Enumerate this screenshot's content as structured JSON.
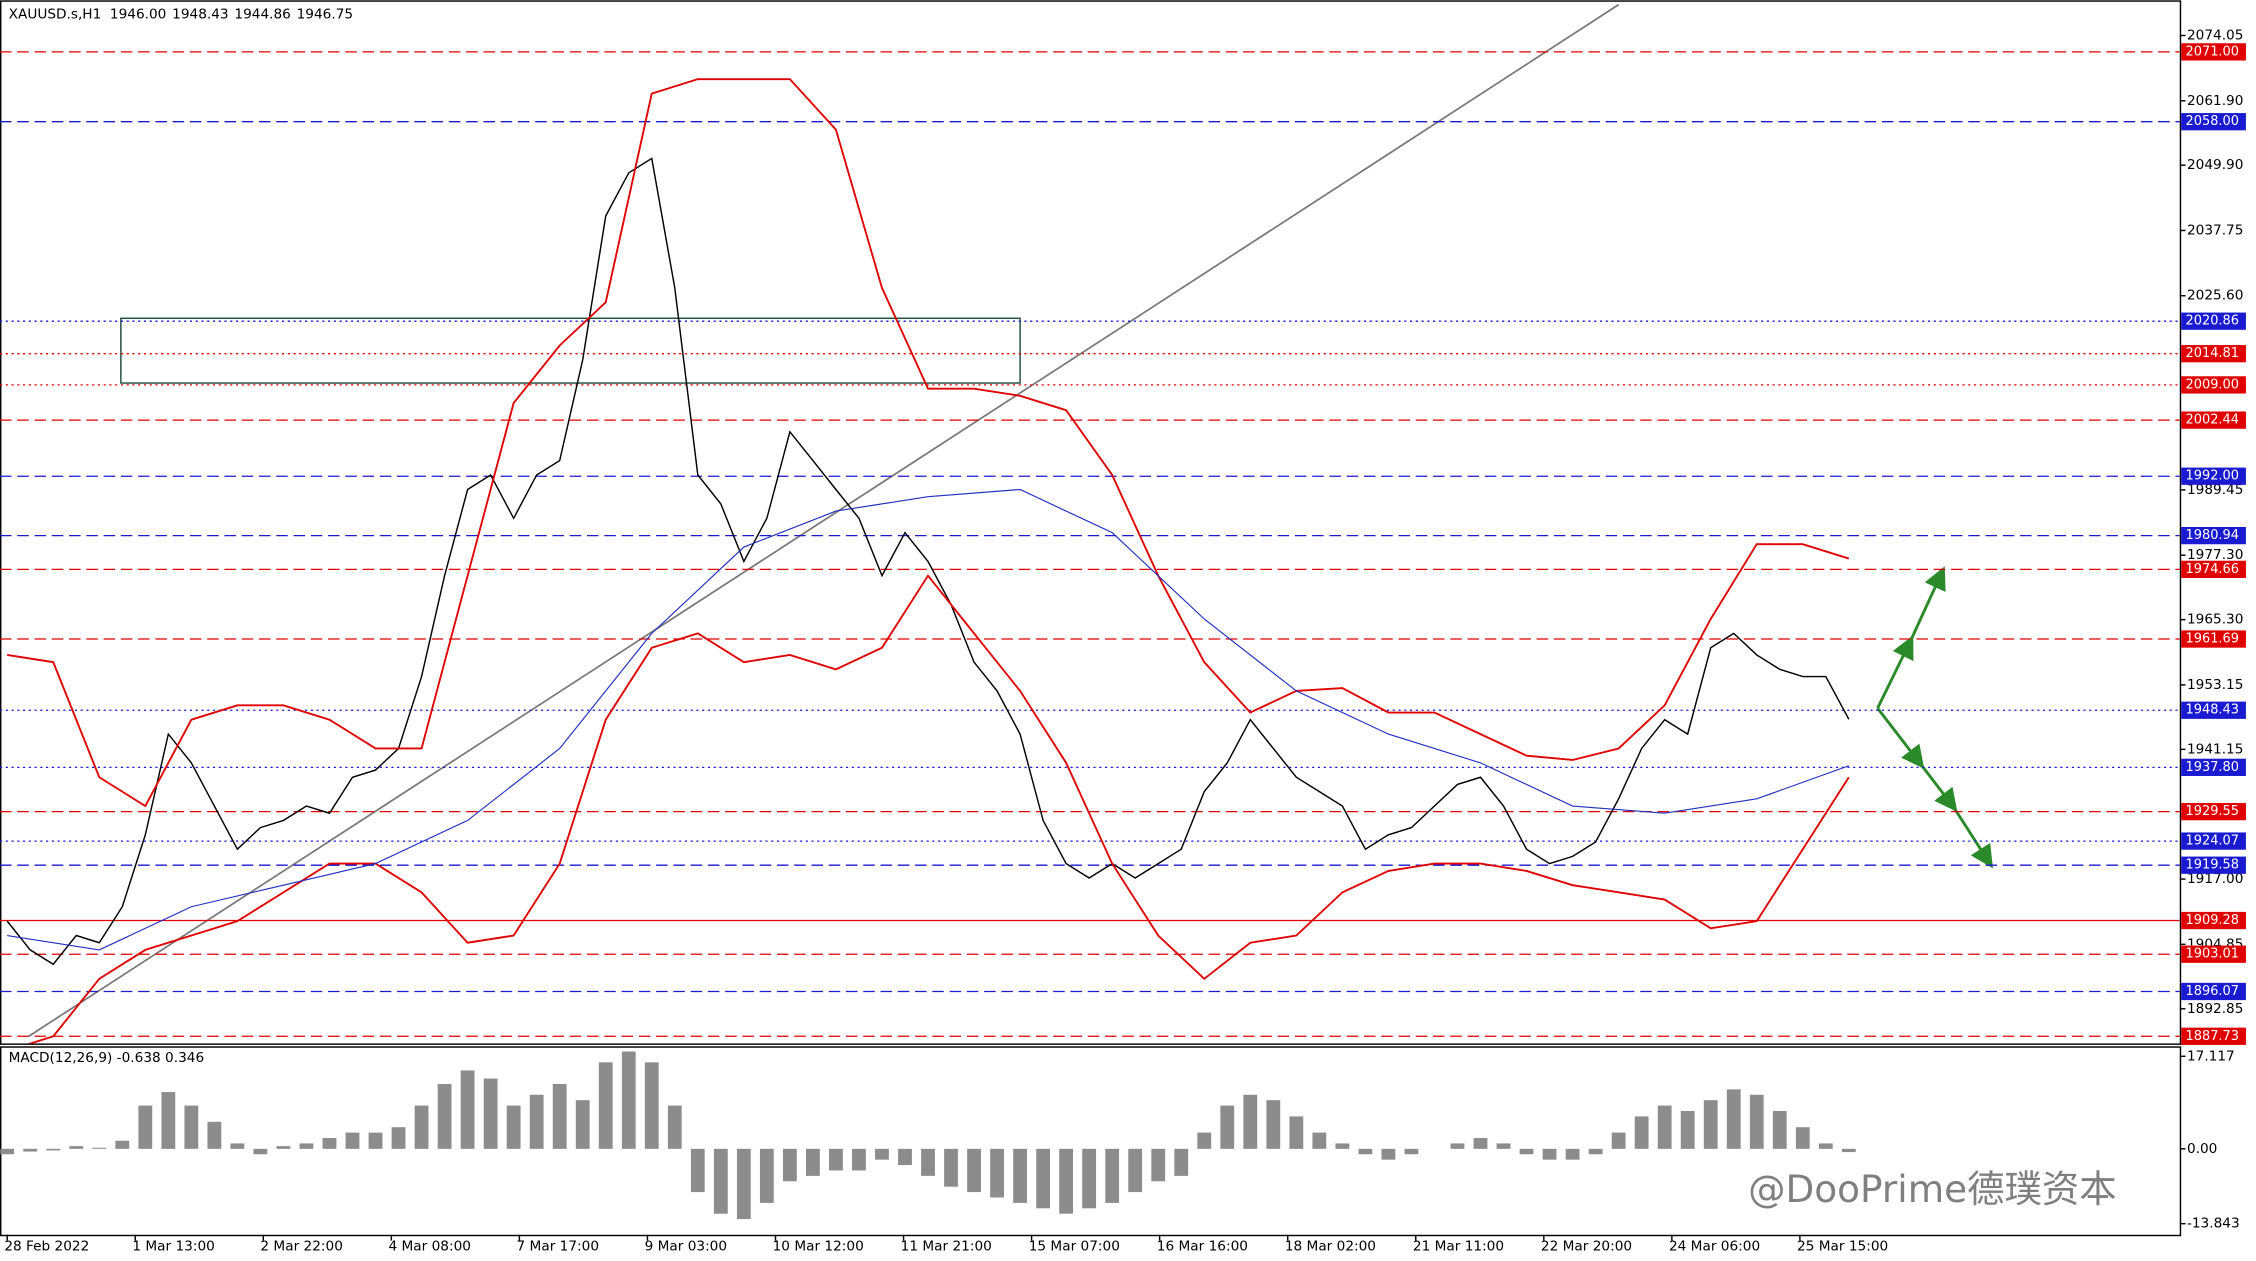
{
  "header": {
    "symbol": "XAUUSD.s,H1",
    "ohlc": [
      "1946.00",
      "1948.43",
      "1944.86",
      "1946.75"
    ]
  },
  "watermark": "@DooPrime德璞资本",
  "chart_data": [
    {
      "type": "line",
      "ylim": [
        1886.4,
        2080.6
      ],
      "yticks": [
        2074.05,
        {
          "value": 2061.9,
          "label": "2061.90"
        },
        {
          "value": 2049.9,
          "label": "2049.90"
        },
        2037.75,
        {
          "value": 2025.6,
          "label": "2025.60"
        },
        1989.45,
        {
          "value": 1977.3,
          "label": "1977.30"
        },
        {
          "value": 1965.3,
          "label": "1965.30"
        },
        1953.15,
        1941.15,
        {
          "value": 1917,
          "label": "1917.00"
        },
        1904.85,
        1892.85
      ],
      "levels": [
        {
          "value": 2071,
          "label": "2071.00",
          "color": "#e00000",
          "style": "dashed"
        },
        {
          "value": 2058,
          "label": "2058.00",
          "color": "#1a1ad0",
          "style": "dashed"
        },
        {
          "value": 2020.86,
          "label": "2020.86",
          "color": "#1a1ad0",
          "style": "dotted"
        },
        {
          "value": 2014.81,
          "label": "2014.81",
          "color": "#e00000",
          "style": "dotted"
        },
        {
          "value": 2009,
          "label": "2009.00",
          "color": "#e00000",
          "style": "dotted"
        },
        {
          "value": 2002.44,
          "label": "2002.44",
          "color": "#e00000",
          "style": "dashed"
        },
        {
          "value": 1992,
          "label": "1992.00",
          "color": "#1a1ad0",
          "style": "dashed"
        },
        {
          "value": 1980.94,
          "label": "1980.94",
          "color": "#1a1ad0",
          "style": "dashed"
        },
        {
          "value": 1974.66,
          "label": "1974.66",
          "color": "#e00000",
          "style": "dashed"
        },
        {
          "value": 1961.69,
          "label": "1961.69",
          "color": "#e00000",
          "style": "dashed"
        },
        {
          "value": 1948.43,
          "label": "1948.43",
          "color": "#1a1ad0",
          "style": "dotted"
        },
        {
          "value": 1937.8,
          "label": "1937.80",
          "color": "#1a1ad0",
          "style": "dotted"
        },
        {
          "value": 1929.55,
          "label": "1929.55",
          "color": "#e00000",
          "style": "dashed"
        },
        {
          "value": 1924.07,
          "label": "1924.07",
          "color": "#1a1ad0",
          "style": "dotted"
        },
        {
          "value": 1919.58,
          "label": "1919.58",
          "color": "#1a1ad0",
          "style": "dashed"
        },
        {
          "value": 1909.28,
          "label": "1909.28",
          "color": "#e00000",
          "style": "solid"
        },
        {
          "value": 1903.01,
          "label": "1903.01",
          "color": "#e00000",
          "style": "dashed"
        },
        {
          "value": 1896.07,
          "label": "1896.07",
          "color": "#1a1ad0",
          "style": "dashed"
        },
        {
          "value": 1887.73,
          "label": "1887.73",
          "color": "#e00000",
          "style": "dashed"
        }
      ],
      "xlabels": [
        "28 Feb 2022",
        "1 Mar 13:00",
        "2 Mar 22:00",
        "4 Mar 08:00",
        "7 Mar 17:00",
        "9 Mar 03:00",
        "10 Mar 12:00",
        "11 Mar 21:00",
        "15 Mar 07:00",
        "16 Mar 16:00",
        "18 Mar 02:00",
        "21 Mar 11:00",
        "22 Mar 20:00",
        "24 Mar 06:00",
        "25 Mar 15:00"
      ],
      "series": [
        {
          "color": "#000000",
          "values": [
            1909.16,
            1903.8,
            1901.12,
            1906.48,
            1905.14,
            1911.84,
            1925.23,
            1943.99,
            1938.63,
            1930.59,
            1922.56,
            1926.57,
            1927.91,
            1930.59,
            1929.25,
            1935.95,
            1937.29,
            1941.31,
            1954.71,
            1973.47,
            1989.54,
            1992.22,
            1984.18,
            1992.22,
            1994.9,
            2013.66,
            2040.45,
            2048.49,
            2051.17,
            2027.06,
            1992.22,
            1986.86,
            1976.14,
            1984.18,
            2000.26,
            1994.9,
            1989.54,
            1984.18,
            1973.47,
            1981.5,
            1976.14,
            1968.11,
            1957.39,
            1952.03,
            1943.99,
            1927.91,
            1919.87,
            1917.2,
            1919.87,
            1917.2,
            1919.87,
            1922.56,
            1933.27,
            1938.63,
            1946.67,
            1941.31,
            1935.95,
            1933.27,
            1930.59,
            1922.56,
            1925.23,
            1926.57,
            1930.59,
            1934.61,
            1935.95,
            1930.59,
            1922.56,
            1919.87,
            1921.21,
            1923.89,
            1931.93,
            1941.31,
            1946.67,
            1943.99,
            1960.07,
            1962.75,
            1958.73,
            1956.05,
            1954.71,
            1954.71,
            1946.75
          ]
        },
        {
          "color": "#e00000",
          "values": [
            1958.73,
            1957.39,
            1935.95,
            1930.59,
            1946.67,
            1949.35,
            1949.35,
            1946.67,
            1941.31,
            1941.31,
            1973.47,
            2005.62,
            2016.34,
            2024.38,
            2063.23,
            2065.91,
            2065.91,
            2065.91,
            2056.53,
            2027.06,
            2008.3,
            2008.3,
            2006.96,
            2004.28,
            1992.22,
            1973.47,
            1957.39,
            1948.01,
            1952.03,
            1952.57,
            1948.01,
            1948.01,
            1943.99,
            1939.97,
            1939.17,
            1941.31,
            1949.35,
            1965.43,
            1979.36,
            1979.36,
            1976.68
          ]
        },
        {
          "color": "#e00000",
          "values": [
            1885.04,
            1887.72,
            1898.44,
            1903.8,
            1906.48,
            1909.16,
            1914.52,
            1919.87,
            1919.87,
            1914.52,
            1905.14,
            1906.48,
            1919.87,
            1946.67,
            1960.07,
            1962.75,
            1957.39,
            1958.73,
            1956.05,
            1960.07,
            1973.47,
            1962.75,
            1952.03,
            1938.63,
            1919.87,
            1906.48,
            1898.44,
            1905.14,
            1906.48,
            1914.52,
            1918.53,
            1919.87,
            1919.87,
            1918.53,
            1915.86,
            1914.52,
            1913.18,
            1907.82,
            1909.16,
            1922.56,
            1935.95
          ]
        },
        {
          "color": "#2030c0",
          "values": [
            1906.48,
            1903.8,
            1911.84,
            1915.86,
            1919.87,
            1927.91,
            1941.31,
            1962.75,
            1978.82,
            1985.52,
            1988.2,
            1989.54,
            1981.5,
            1965.43,
            1952.03,
            1943.99,
            1938.63,
            1930.59,
            1929.25,
            1931.93,
            1938.1
          ]
        }
      ]
    },
    {
      "type": "bar",
      "title": "MACD(12,26,9) -0.638 0.346",
      "color": "#8c8c8c",
      "ylim": [
        -15.9,
        18.7
      ],
      "yticks": [
        17.117,
        {
          "value": 0,
          "label": "0.00"
        },
        -13.843
      ],
      "values": [
        -1,
        -0.5,
        -0.3,
        0.5,
        0.2,
        1.5,
        8,
        10.5,
        8,
        5,
        1,
        -1,
        0.5,
        1,
        2,
        3,
        3,
        4,
        8,
        12,
        14.5,
        13,
        8,
        10,
        12,
        9,
        16,
        18,
        16,
        8,
        -8,
        -12,
        -13,
        -10,
        -6,
        -5,
        -4,
        -4,
        -2,
        -3,
        -5,
        -7,
        -8,
        -9,
        -10,
        -11,
        -12,
        -11,
        -10,
        -8,
        -6,
        -5,
        3,
        8,
        10,
        9,
        6,
        3,
        1,
        -1,
        -2,
        -1,
        0,
        1,
        2,
        1,
        -1,
        -2,
        -2,
        -1,
        3,
        6,
        8,
        7,
        9,
        11,
        10,
        7,
        4,
        1,
        -0.6
      ]
    }
  ]
}
